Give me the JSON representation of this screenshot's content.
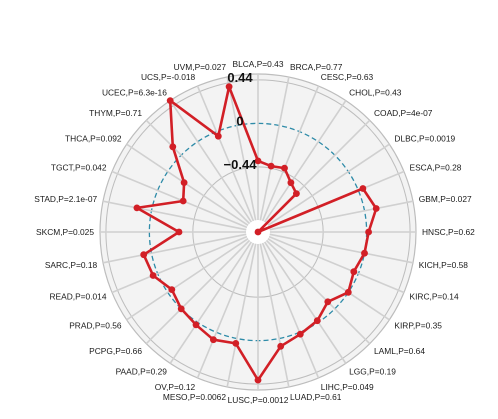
{
  "chart_data": {
    "type": "radar",
    "title": "",
    "radial_range": [
      -1.1,
      0.5
    ],
    "radial_ticks": [
      {
        "value": 0.44,
        "label": "0.44"
      },
      {
        "value": 0,
        "label": "0"
      },
      {
        "value": -0.44,
        "label": "−0.44"
      }
    ],
    "categories": [
      "BLCA,P=0.43",
      "BRCA,P=0.77",
      "CESC,P=0.63",
      "CHOL,P=0.43",
      "COAD,P=4e-07",
      "DLBC,P=0.0019",
      "ESCA,P=0.28",
      "GBM,P=0.027",
      "HNSC,P=0.62",
      "KICH,P=0.58",
      "KIRC,P=0.14",
      "KIRP,P=0.35",
      "LAML,P=0.64",
      "LGG,P=0.19",
      "LIHC,P=0.049",
      "LUAD,P=0.61",
      "LUSC,P=0.0012",
      "MESO,P=0.0062",
      "OV,P=0.12",
      "PAAD,P=0.29",
      "PCPG,P=0.66",
      "PRAD,P=0.56",
      "READ,P=0.014",
      "SARC,P=0.18",
      "SKCM,P=0.025",
      "STAD,P=2.1e-07",
      "TGCT,P=0.042",
      "THCA,P=0.092",
      "THYM,P=0.71",
      "UCEC,P=6.3e-16",
      "UCS,P=-0.018",
      "UVM,P=0.027"
    ],
    "series": [
      {
        "name": "",
        "values": [
          -0.38,
          -0.42,
          -0.4,
          -0.5,
          -0.55,
          -1.1,
          0.05,
          0.12,
          0.02,
          0.0,
          -0.05,
          0.0,
          -0.1,
          -0.02,
          0.02,
          0.08,
          0.4,
          0.05,
          0.08,
          0.03,
          0.0,
          -0.05,
          0.05,
          0.08,
          -0.3,
          0.15,
          -0.28,
          -0.2,
          0.12,
          0.5,
          -0.05,
          0.4
        ]
      }
    ],
    "colors": {
      "line": "#d21f26",
      "background": "#f3f3f3",
      "grid_ring": "#bdbdbd",
      "zero_ring": "#2e8ba8",
      "spoke": "#d0d0d0"
    },
    "grid": true,
    "legend": "none"
  }
}
